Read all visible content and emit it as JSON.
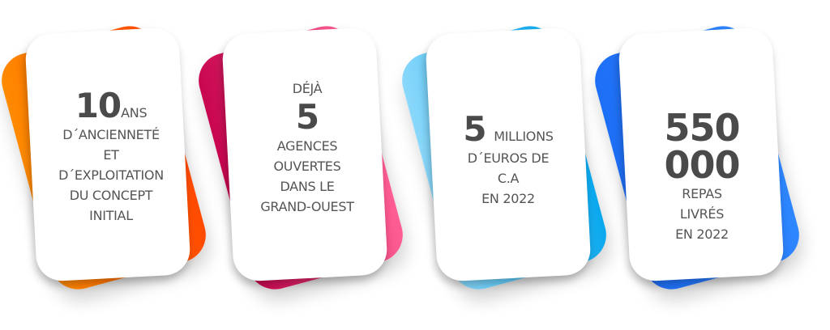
{
  "cards": [
    {
      "number": "10",
      "unit": "ANS",
      "lines": [
        "D´ANCIENNETÉ",
        "ET",
        "D´EXPLOITATION",
        "DU CONCEPT",
        "INITIAL"
      ],
      "gradient": [
        "#ff8a00",
        "#ff4a00"
      ]
    },
    {
      "prefix": "DÉJÀ",
      "number": "5",
      "lines": [
        "AGENCES",
        "OUVERTES",
        "DANS LE",
        "GRAND-OUEST"
      ],
      "gradient": [
        "#c8064f",
        "#ff5e95"
      ]
    },
    {
      "number": "5",
      "unit": "MILLIONS",
      "lines": [
        "D´EUROS DE",
        "C.A",
        "EN 2022"
      ],
      "gradient": [
        "#8ad8fb",
        "#0aa8ee"
      ]
    },
    {
      "number": "550 000",
      "lines": [
        "REPAS",
        "LIVRÉS",
        "EN 2022"
      ],
      "gradient": [
        "#1e6ff7",
        "#2e86ff"
      ]
    }
  ]
}
